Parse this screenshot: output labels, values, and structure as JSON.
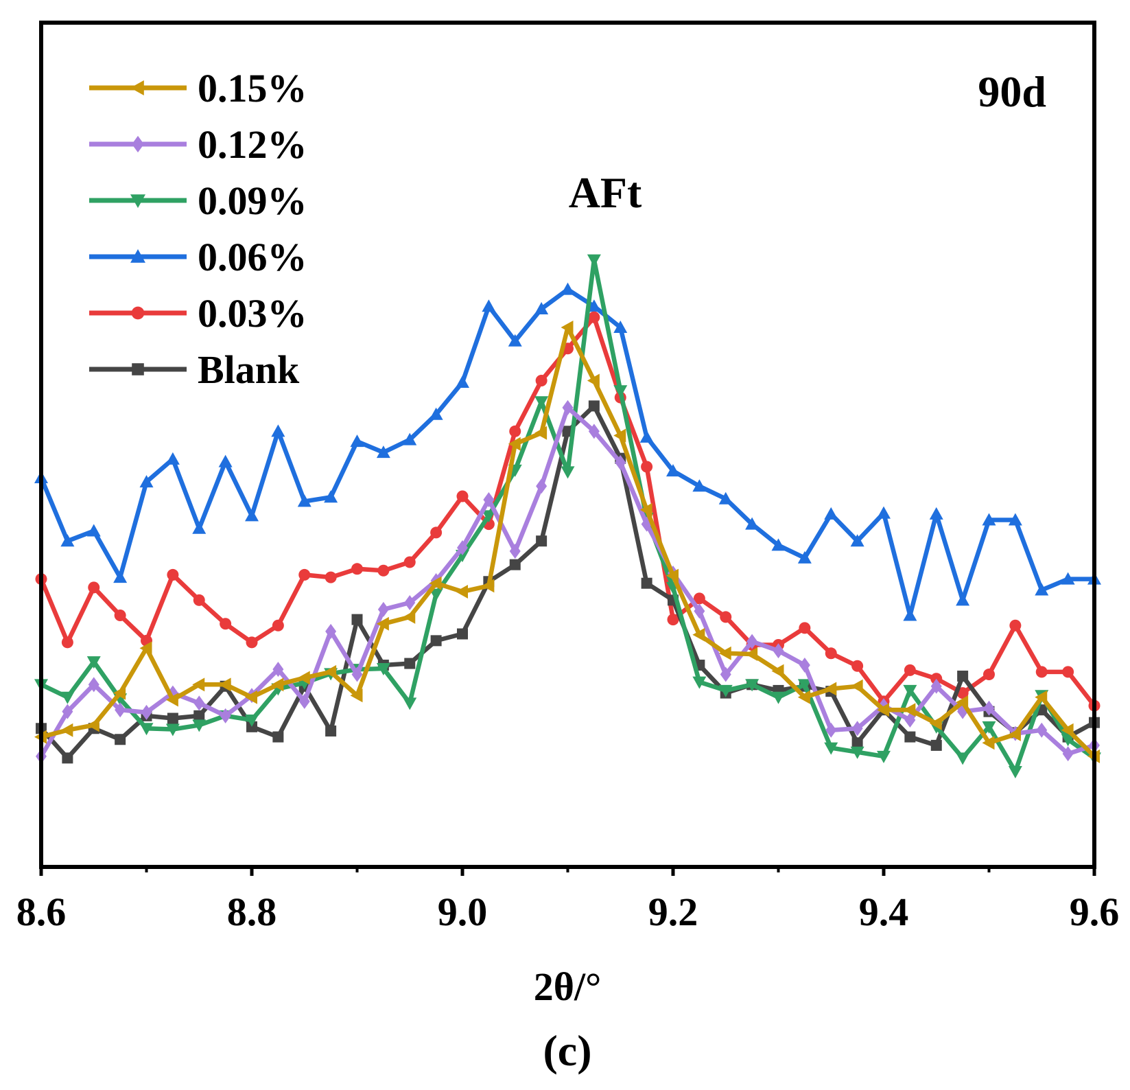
{
  "chart_data": {
    "type": "line",
    "panel_label": "90d",
    "peak_label": "AFt",
    "caption": "(c)",
    "xlabel": "2θ/°",
    "ylabel": "",
    "xlim": [
      8.6,
      9.6
    ],
    "ylim": [
      0,
      100
    ],
    "x_ticks": [
      "8.6",
      "8.8",
      "9.0",
      "9.2",
      "9.4",
      "9.6"
    ],
    "x_tick_values": [
      8.6,
      8.8,
      9.0,
      9.2,
      9.4,
      9.6
    ],
    "x_minor_ticks": [
      8.7,
      8.9,
      9.1,
      9.3,
      9.5
    ],
    "y_ticks_shown": false,
    "grid": false,
    "legend_position": "top-left",
    "x": [
      8.6,
      8.625,
      8.65,
      8.675,
      8.7,
      8.725,
      8.75,
      8.775,
      8.8,
      8.825,
      8.85,
      8.875,
      8.9,
      8.925,
      8.95,
      8.975,
      9.0,
      9.025,
      9.05,
      9.075,
      9.1,
      9.125,
      9.15,
      9.175,
      9.2,
      9.225,
      9.25,
      9.275,
      9.3,
      9.325,
      9.35,
      9.375,
      9.4,
      9.425,
      9.45,
      9.475,
      9.5,
      9.525,
      9.55,
      9.575,
      9.6
    ],
    "series": [
      {
        "name": "0.15%",
        "color": "#c9970a",
        "marker": "triangle-left",
        "values": [
          15.4,
          16.2,
          16.8,
          20.6,
          25.9,
          19.8,
          21.6,
          21.6,
          20.1,
          21.6,
          22.4,
          23.1,
          20.3,
          28.8,
          29.6,
          33.6,
          32.6,
          33.3,
          50.1,
          51.4,
          63.9,
          57.6,
          51.1,
          42.3,
          34.5,
          27.5,
          25.3,
          25.2,
          23.2,
          20.1,
          21.1,
          21.4,
          18.6,
          18.6,
          17.0,
          19.5,
          14.7,
          15.7,
          20.1,
          16.2,
          13.1
        ]
      },
      {
        "name": "0.12%",
        "color": "#a97fde",
        "marker": "diamond",
        "values": [
          13.1,
          18.4,
          21.6,
          18.6,
          18.3,
          20.6,
          19.4,
          17.9,
          20.3,
          23.4,
          19.6,
          27.9,
          22.8,
          30.5,
          31.3,
          33.9,
          37.8,
          43.5,
          37.4,
          45.1,
          54.4,
          51.6,
          47.9,
          40.6,
          34.8,
          30.3,
          22.8,
          26.7,
          25.6,
          23.9,
          16.2,
          16.4,
          19.1,
          17.4,
          21.4,
          18.4,
          18.8,
          15.8,
          16.2,
          13.4,
          14.4
        ]
      },
      {
        "name": "0.09%",
        "color": "#2fa163",
        "marker": "triangle-down",
        "values": [
          21.6,
          20.1,
          24.3,
          19.9,
          16.4,
          16.3,
          16.8,
          17.9,
          17.4,
          21.1,
          21.8,
          22.9,
          23.4,
          23.5,
          19.4,
          32.3,
          36.9,
          41.6,
          47.0,
          55.1,
          46.8,
          71.9,
          56.4,
          41.3,
          33.1,
          21.9,
          20.9,
          21.6,
          20.1,
          21.6,
          14.1,
          13.6,
          13.1,
          20.9,
          16.6,
          12.9,
          16.6,
          11.3,
          20.3,
          15.1,
          12.9
        ]
      },
      {
        "name": "0.06%",
        "color": "#1f6fde",
        "marker": "triangle-up",
        "values": [
          46.1,
          38.6,
          39.8,
          34.3,
          45.6,
          48.3,
          40.1,
          48.0,
          41.6,
          51.6,
          43.3,
          43.8,
          50.4,
          49.1,
          50.6,
          53.6,
          57.4,
          66.4,
          62.3,
          66.1,
          68.4,
          66.4,
          63.9,
          50.9,
          46.9,
          45.1,
          43.6,
          40.6,
          38.1,
          36.6,
          41.8,
          38.6,
          41.9,
          29.8,
          41.8,
          31.6,
          41.1,
          41.1,
          32.8,
          34.1,
          34.1
        ]
      },
      {
        "name": "0.03%",
        "color": "#e93b3b",
        "marker": "circle",
        "values": [
          34.1,
          26.6,
          33.1,
          29.8,
          26.8,
          34.6,
          31.6,
          28.8,
          26.6,
          28.6,
          34.6,
          34.3,
          35.3,
          35.1,
          36.1,
          39.6,
          43.9,
          40.6,
          51.6,
          57.6,
          61.4,
          65.1,
          55.6,
          47.4,
          29.3,
          31.8,
          29.6,
          26.3,
          26.3,
          28.3,
          25.3,
          23.8,
          19.6,
          23.3,
          22.3,
          20.6,
          22.8,
          28.6,
          23.1,
          23.1,
          19.1
        ]
      },
      {
        "name": "Blank",
        "color": "#454545",
        "marker": "square",
        "values": [
          16.4,
          12.9,
          16.4,
          15.1,
          17.9,
          17.6,
          17.9,
          21.4,
          16.6,
          15.4,
          21.4,
          16.1,
          29.3,
          23.9,
          24.1,
          26.8,
          27.6,
          33.8,
          35.8,
          38.6,
          51.6,
          54.6,
          48.4,
          33.6,
          31.6,
          23.9,
          20.6,
          21.6,
          20.9,
          21.4,
          20.8,
          14.7,
          18.6,
          15.4,
          14.4,
          22.6,
          18.4,
          15.9,
          18.6,
          15.4,
          17.1
        ]
      }
    ]
  }
}
